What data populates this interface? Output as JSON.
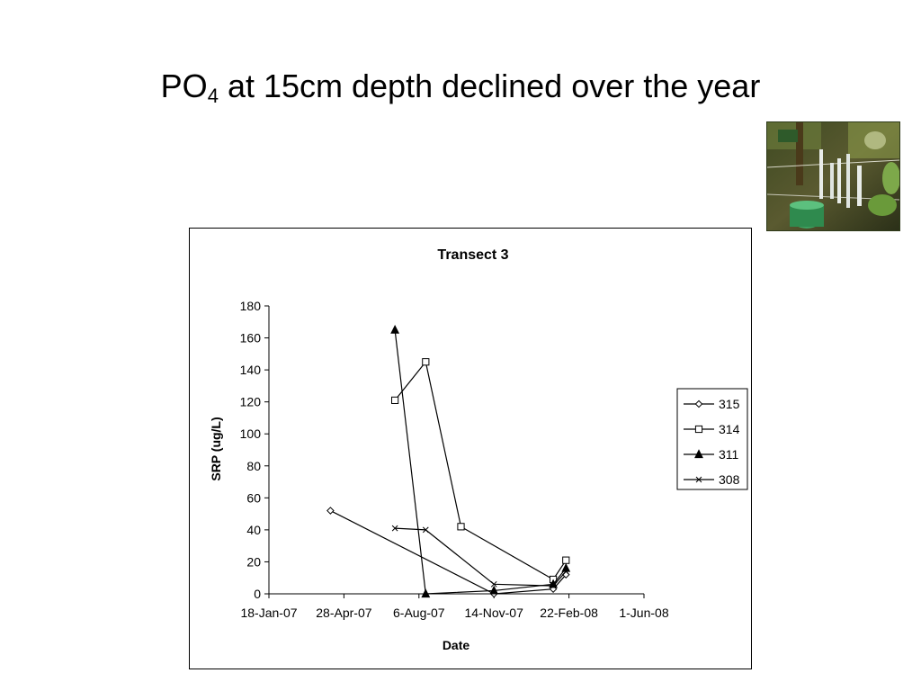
{
  "slide": {
    "title_main": "PO",
    "title_sub": "4",
    "title_rest": " at 15cm depth declined over the year"
  },
  "photo": {
    "icon": "field-photo-piezometers"
  },
  "chart_data": {
    "type": "scatter",
    "title": "Transect 3",
    "xlabel": "Date",
    "ylabel": "SRP (ug/L)",
    "ylim": [
      0,
      180
    ],
    "yticks": [
      0,
      20,
      40,
      60,
      80,
      100,
      120,
      140,
      160,
      180
    ],
    "xlim": [
      "2007-01-18",
      "2008-06-01"
    ],
    "xticks": [
      {
        "date": "2007-01-18",
        "label": "18-Jan-07"
      },
      {
        "date": "2007-04-28",
        "label": "28-Apr-07"
      },
      {
        "date": "2007-08-06",
        "label": "6-Aug-07"
      },
      {
        "date": "2007-11-14",
        "label": "14-Nov-07"
      },
      {
        "date": "2008-02-22",
        "label": "22-Feb-08"
      },
      {
        "date": "2008-06-01",
        "label": "1-Jun-08"
      }
    ],
    "legend_position": "right",
    "series": [
      {
        "name": "315",
        "marker": "diamond-open",
        "points": [
          {
            "x": "2007-04-10",
            "y": 52
          },
          {
            "x": "2007-11-14",
            "y": 0
          },
          {
            "x": "2008-02-01",
            "y": 3
          },
          {
            "x": "2008-02-18",
            "y": 12
          }
        ]
      },
      {
        "name": "314",
        "marker": "square-open",
        "points": [
          {
            "x": "2007-07-05",
            "y": 121
          },
          {
            "x": "2007-08-15",
            "y": 145
          },
          {
            "x": "2007-10-01",
            "y": 42
          },
          {
            "x": "2008-02-01",
            "y": 9
          },
          {
            "x": "2008-02-18",
            "y": 21
          }
        ]
      },
      {
        "name": "311",
        "marker": "triangle-filled",
        "points": [
          {
            "x": "2007-07-05",
            "y": 165
          },
          {
            "x": "2007-08-15",
            "y": 0
          },
          {
            "x": "2007-11-14",
            "y": 2
          },
          {
            "x": "2008-02-01",
            "y": 6
          },
          {
            "x": "2008-02-18",
            "y": 16
          }
        ]
      },
      {
        "name": "308",
        "marker": "x",
        "points": [
          {
            "x": "2007-07-05",
            "y": 41
          },
          {
            "x": "2007-08-15",
            "y": 40
          },
          {
            "x": "2007-11-14",
            "y": 6
          },
          {
            "x": "2008-02-01",
            "y": 5
          },
          {
            "x": "2008-02-18",
            "y": 14
          }
        ]
      }
    ]
  }
}
